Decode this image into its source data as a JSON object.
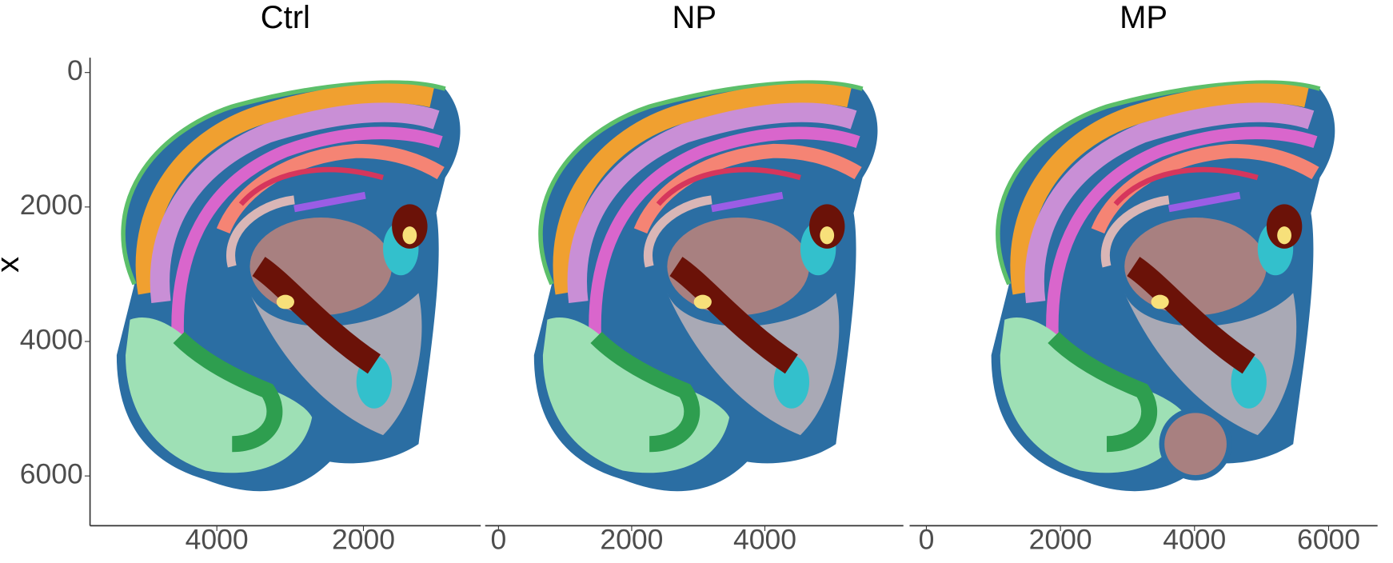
{
  "chart_data": [
    {
      "type": "scatter",
      "title": "Ctrl",
      "y_label": "x",
      "xlim": [
        5730,
        400
      ],
      "xticks": [
        4000,
        2000
      ],
      "ylim": [
        -220,
        6740
      ],
      "yticks": [
        0,
        2000,
        4000,
        6000
      ]
    },
    {
      "type": "scatter",
      "title": "NP",
      "xlim": [
        -200,
        6080
      ],
      "xticks": [
        0,
        2000,
        4000
      ]
    },
    {
      "type": "scatter",
      "title": "MP",
      "xlim": [
        -250,
        6730
      ],
      "xticks": [
        0,
        2000,
        4000,
        6000
      ]
    }
  ]
}
